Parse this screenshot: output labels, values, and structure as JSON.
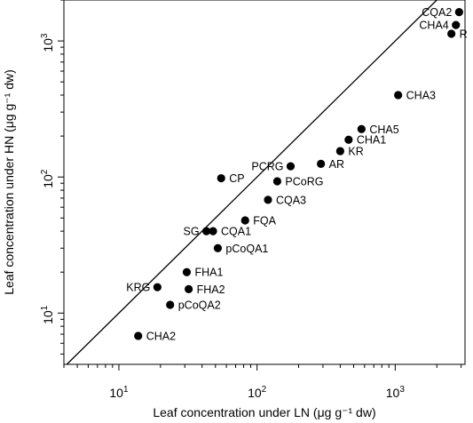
{
  "chart_data": {
    "type": "scatter",
    "xlabel": "Leaf concentration under LN (μg g⁻¹ dw)",
    "ylabel": "Leaf concentration under HN (μg g⁻¹ dw)",
    "x_scale": "log",
    "y_scale": "log",
    "xlim": [
      4.0,
      3200
    ],
    "ylim": [
      4.2,
      2000
    ],
    "x_ticks": [
      {
        "value": 10,
        "base": "10",
        "exp": "1"
      },
      {
        "value": 100,
        "base": "10",
        "exp": "2"
      },
      {
        "value": 1000,
        "base": "10",
        "exp": "3"
      }
    ],
    "y_ticks": [
      {
        "value": 10,
        "base": "10",
        "exp": "1"
      },
      {
        "value": 100,
        "base": "10",
        "exp": "2"
      },
      {
        "value": 1000,
        "base": "10",
        "exp": "3"
      }
    ],
    "reference_line": "y = x",
    "grid": false,
    "legend": "none",
    "marker_color": "#000000",
    "points": [
      {
        "label": "CQA2",
        "x": 2900,
        "y": 1630,
        "label_side": "left"
      },
      {
        "label": "CHA4",
        "x": 2750,
        "y": 1310,
        "label_side": "left"
      },
      {
        "label": "R",
        "x": 2550,
        "y": 1130,
        "label_side": "right"
      },
      {
        "label": "CHA3",
        "x": 1050,
        "y": 400,
        "label_side": "right"
      },
      {
        "label": "CHA5",
        "x": 570,
        "y": 225,
        "label_side": "right"
      },
      {
        "label": "CHA1",
        "x": 460,
        "y": 188,
        "label_side": "right"
      },
      {
        "label": "KR",
        "x": 400,
        "y": 155,
        "label_side": "right"
      },
      {
        "label": "AR",
        "x": 290,
        "y": 125,
        "label_side": "right"
      },
      {
        "label": "PCRG",
        "x": 175,
        "y": 120,
        "label_side": "left"
      },
      {
        "label": "PCoRG",
        "x": 140,
        "y": 93,
        "label_side": "right"
      },
      {
        "label": "CP",
        "x": 55,
        "y": 98,
        "label_side": "right"
      },
      {
        "label": "CQA3",
        "x": 120,
        "y": 68,
        "label_side": "right"
      },
      {
        "label": "FQA",
        "x": 82,
        "y": 48,
        "label_side": "right"
      },
      {
        "label": "SG",
        "x": 43,
        "y": 40,
        "label_side": "left"
      },
      {
        "label": "CQA1",
        "x": 48,
        "y": 40,
        "label_side": "right"
      },
      {
        "label": "pCoQA1",
        "x": 52,
        "y": 30,
        "label_side": "right"
      },
      {
        "label": "FHA1",
        "x": 31,
        "y": 20,
        "label_side": "right"
      },
      {
        "label": "FHA2",
        "x": 32,
        "y": 15,
        "label_side": "right"
      },
      {
        "label": "KRG",
        "x": 19,
        "y": 15.5,
        "label_side": "left"
      },
      {
        "label": "pCoQA2",
        "x": 23.5,
        "y": 11.5,
        "label_side": "right"
      },
      {
        "label": "CHA2",
        "x": 13.8,
        "y": 6.8,
        "label_side": "right"
      }
    ]
  }
}
